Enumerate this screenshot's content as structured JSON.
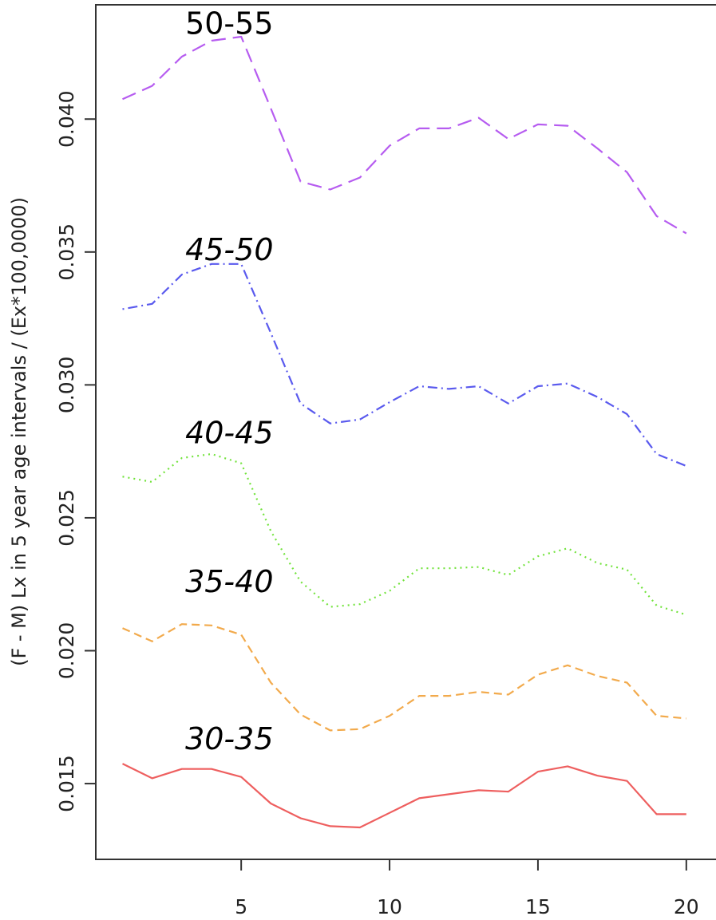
{
  "chart_data": {
    "type": "line",
    "title": "",
    "xlabel": "",
    "ylabel": "(F - M) Lx in 5 year age intervals / (Ex*100,0000)",
    "xlim": [
      0.1,
      21.0
    ],
    "ylim": [
      0.01215,
      0.0443
    ],
    "x_ticks": [
      "5",
      "10",
      "15",
      "20"
    ],
    "y_ticks": [
      "0.015",
      "0.020",
      "0.025",
      "0.030",
      "0.035",
      "0.040"
    ],
    "grid": false,
    "x": [
      1,
      2,
      3,
      4,
      5,
      6,
      7,
      8,
      9,
      10,
      11,
      12,
      13,
      14,
      15,
      16,
      17,
      18,
      19,
      20
    ],
    "series": [
      {
        "name": "50-55",
        "label_italic": false,
        "color": "#b65cf0",
        "dash": "dashed",
        "values": [
          0.04075,
          0.04125,
          0.04235,
          0.04295,
          0.0431,
          0.0404,
          0.03765,
          0.03735,
          0.0378,
          0.039,
          0.03965,
          0.03965,
          0.04005,
          0.03925,
          0.0398,
          0.03975,
          0.0389,
          0.038,
          0.03635,
          0.0357
        ]
      },
      {
        "name": "45-50",
        "label_italic": true,
        "color": "#5a5aee",
        "dash": "dotdash",
        "values": [
          0.03285,
          0.03305,
          0.03415,
          0.03455,
          0.03455,
          0.03195,
          0.0293,
          0.02855,
          0.0287,
          0.02935,
          0.02995,
          0.02985,
          0.02995,
          0.0293,
          0.02995,
          0.03005,
          0.02955,
          0.0289,
          0.0274,
          0.02695
        ]
      },
      {
        "name": "40-45",
        "label_italic": true,
        "color": "#72e33c",
        "dash": "dotted",
        "values": [
          0.02655,
          0.02635,
          0.02725,
          0.0274,
          0.02705,
          0.0245,
          0.0226,
          0.02165,
          0.02175,
          0.02225,
          0.0231,
          0.0231,
          0.02315,
          0.02285,
          0.02355,
          0.02385,
          0.0233,
          0.02305,
          0.0217,
          0.02135
        ]
      },
      {
        "name": "35-40",
        "label_italic": true,
        "color": "#f2aa4c",
        "dash": "shortdash",
        "values": [
          0.02085,
          0.02035,
          0.021,
          0.02095,
          0.0206,
          0.0188,
          0.0176,
          0.017,
          0.01705,
          0.01755,
          0.0183,
          0.0183,
          0.01845,
          0.01835,
          0.0191,
          0.01945,
          0.01905,
          0.0188,
          0.01755,
          0.01745
        ]
      },
      {
        "name": "30-35",
        "label_italic": true,
        "color": "#ee5f5f",
        "dash": "solid",
        "values": [
          0.01575,
          0.0152,
          0.01555,
          0.01555,
          0.01525,
          0.01425,
          0.0137,
          0.0134,
          0.01335,
          0.0139,
          0.01445,
          0.0146,
          0.01475,
          0.0147,
          0.01545,
          0.01565,
          0.0153,
          0.0151,
          0.01385,
          0.01385
        ]
      }
    ],
    "label_positions": {
      "50-55": [
        4.6,
        0.0432
      ],
      "45-50": [
        4.6,
        0.0347
      ],
      "40-45": [
        4.6,
        0.0278
      ],
      "35-40": [
        4.6,
        0.0222
      ],
      "30-35": [
        4.6,
        0.0163
      ]
    }
  }
}
